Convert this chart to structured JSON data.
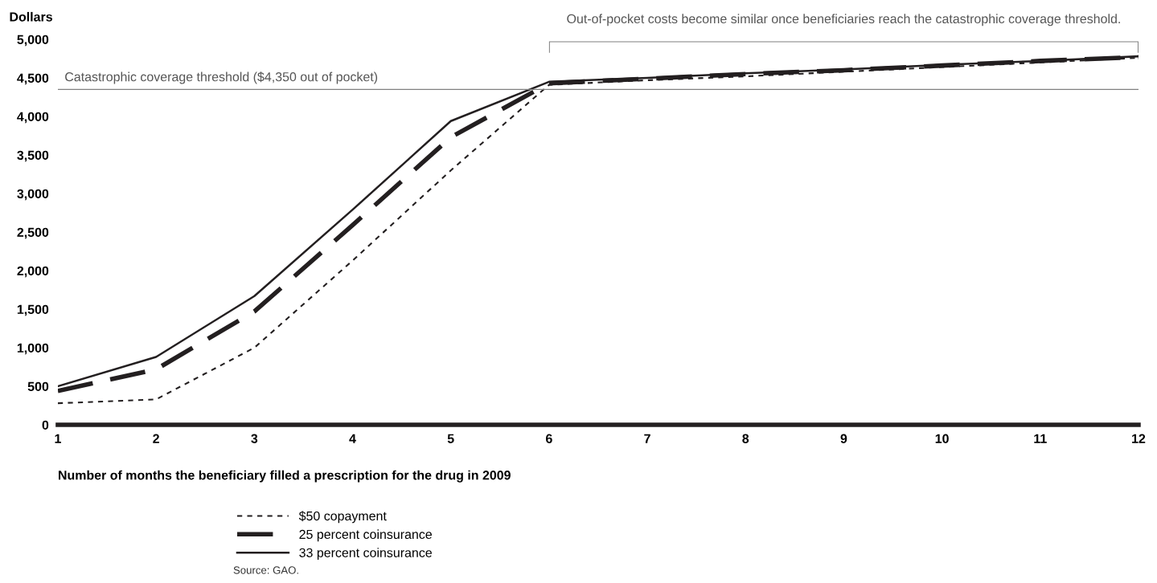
{
  "chart_data": {
    "type": "line",
    "ylabel": "Dollars",
    "xlabel": "Number of months the beneficiary filled a prescription for the drug in 2009",
    "x": [
      1,
      2,
      3,
      4,
      5,
      6,
      7,
      8,
      9,
      10,
      11,
      12
    ],
    "xlim": [
      1,
      12
    ],
    "xticks": [
      1,
      2,
      3,
      4,
      5,
      6,
      7,
      8,
      9,
      10,
      11,
      12
    ],
    "ylim": [
      0,
      5000
    ],
    "yticks": [
      {
        "value": 0,
        "label": "0"
      },
      {
        "value": 500,
        "label": "500"
      },
      {
        "value": 1000,
        "label": "1,000"
      },
      {
        "value": 1500,
        "label": "1,500"
      },
      {
        "value": 2000,
        "label": "2,000"
      },
      {
        "value": 2500,
        "label": "2,500"
      },
      {
        "value": 3000,
        "label": "3,000"
      },
      {
        "value": 3500,
        "label": "3,500"
      },
      {
        "value": 4000,
        "label": "4,000"
      },
      {
        "value": 4500,
        "label": "4,500"
      },
      {
        "value": 5000,
        "label": "5,000"
      }
    ],
    "series": [
      {
        "name": "$50 copayment",
        "color": "#231f20",
        "line_style": "dotted",
        "values": [
          280,
          330,
          1000,
          2130,
          3300,
          4410,
          4470,
          4520,
          4580,
          4640,
          4700,
          4760
        ]
      },
      {
        "name": "25 percent coinsurance",
        "color": "#231f20",
        "line_style": "dashed",
        "values": [
          440,
          720,
          1470,
          2590,
          3730,
          4430,
          4490,
          4550,
          4600,
          4660,
          4720,
          4770
        ]
      },
      {
        "name": "33 percent coinsurance",
        "color": "#231f20",
        "line_style": "solid",
        "values": [
          500,
          880,
          1670,
          2790,
          3940,
          4450,
          4500,
          4560,
          4610,
          4670,
          4720,
          4780
        ]
      }
    ],
    "ref_lines": [
      {
        "axis": "y",
        "value": 4350,
        "label": "Catastrophic coverage threshold ($4,350 out of pocket)",
        "color": "#808080"
      }
    ],
    "annotations": [
      "Out-of-pocket costs become similar once beneficiaries reach the catastrophic coverage threshold.",
      "Source: GAO."
    ],
    "legend": "bottom",
    "grid": false
  }
}
